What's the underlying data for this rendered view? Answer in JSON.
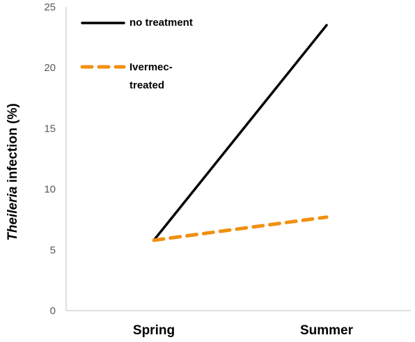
{
  "chart_data": {
    "type": "line",
    "categories": [
      "Spring",
      "Summer"
    ],
    "series": [
      {
        "name": "no treatment",
        "values": [
          5.8,
          23.5
        ],
        "color": "#000000",
        "style": "solid"
      },
      {
        "name": "Ivermec-treated",
        "name_lines": [
          "Ivermec-",
          "treated"
        ],
        "values": [
          5.8,
          7.7
        ],
        "color": "#F0900F",
        "style": "dashed"
      }
    ],
    "ylabel_italic": "Theileria",
    "ylabel_rest": " infection (%)",
    "ylim": [
      0,
      25
    ],
    "yticks": [
      "0",
      "5",
      "10",
      "15",
      "20",
      "25"
    ],
    "grid": false,
    "legend_position": "top-left"
  }
}
